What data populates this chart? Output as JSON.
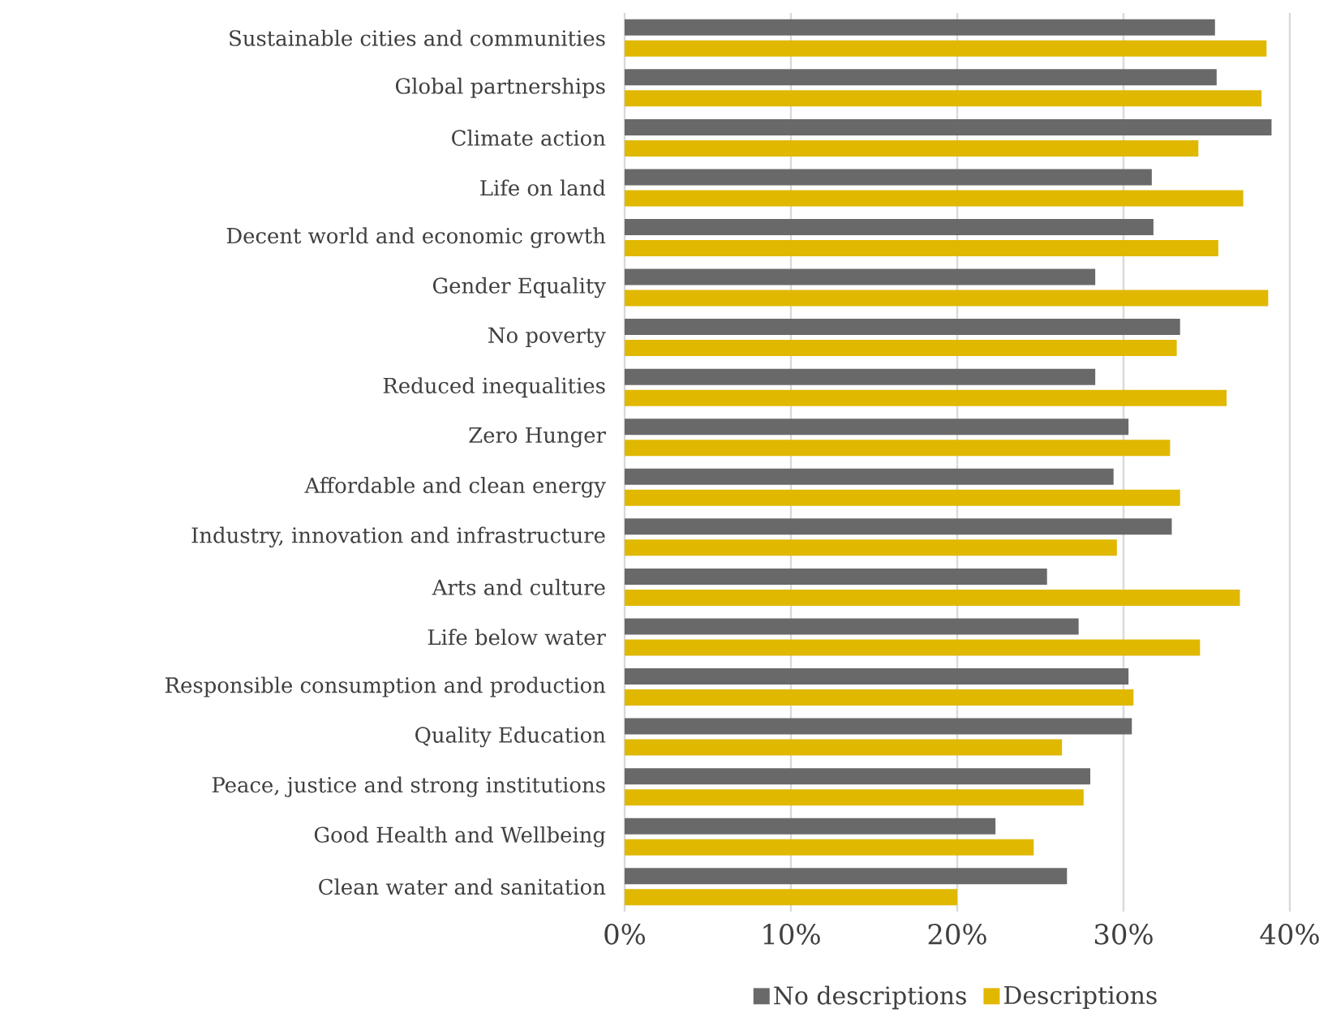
{
  "chart_data": {
    "type": "bar",
    "orientation": "horizontal",
    "categories": [
      "Sustainable cities and communities",
      "Global partnerships",
      "Climate action",
      "Life on land",
      "Decent world and economic growth",
      "Gender Equality",
      "No poverty",
      "Reduced inequalities",
      "Zero Hunger",
      "Affordable and clean energy",
      "Industry, innovation and infrastructure",
      "Arts and culture",
      "Life below water",
      "Responsible consumption and production",
      "Quality Education",
      "Peace, justice and strong institutions",
      "Good Health and Wellbeing",
      "Clean water and sanitation"
    ],
    "series": [
      {
        "name": "No descriptions",
        "color": "#696969",
        "values": [
          35.5,
          35.6,
          38.9,
          31.7,
          31.8,
          28.3,
          33.4,
          28.3,
          30.3,
          29.4,
          32.9,
          25.4,
          27.3,
          30.3,
          30.5,
          28.0,
          22.3,
          26.6
        ]
      },
      {
        "name": "Descriptions",
        "color": "#e0b800",
        "values": [
          38.6,
          38.3,
          34.5,
          37.2,
          35.7,
          38.7,
          33.2,
          36.2,
          32.8,
          33.4,
          29.6,
          37.0,
          34.6,
          30.6,
          26.3,
          27.6,
          24.6,
          20.0
        ]
      }
    ],
    "xlim": [
      0,
      40
    ],
    "xticks": [
      {
        "value": 0,
        "label": "0%"
      },
      {
        "value": 10,
        "label": "10%"
      },
      {
        "value": 20,
        "label": "20%"
      },
      {
        "value": 30,
        "label": "30%"
      },
      {
        "value": 40,
        "label": "40%"
      }
    ],
    "grid": "x",
    "legend": "bottom"
  }
}
